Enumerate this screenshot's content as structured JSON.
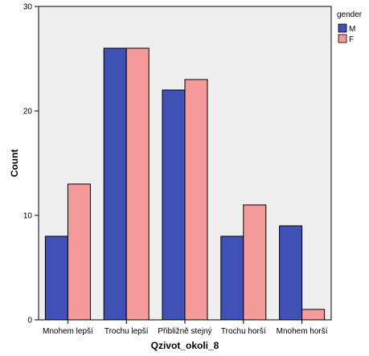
{
  "chart_data": {
    "type": "bar",
    "categories": [
      "Mnohem lepší",
      "Trochu lepší",
      "Přibližně stejný",
      "Trochu horší",
      "Mnohem horší"
    ],
    "series": [
      {
        "name": "M",
        "values": [
          8,
          26,
          22,
          8,
          9
        ],
        "color": "#3f51b5"
      },
      {
        "name": "F",
        "values": [
          13,
          26,
          23,
          11,
          1
        ],
        "color": "#f59a9a"
      }
    ],
    "xlabel": "Qzivot_okoli_8",
    "ylabel": "Count",
    "ylim": [
      0,
      30
    ],
    "yticks": [
      0,
      10,
      20,
      30
    ],
    "grid": false,
    "legend": {
      "title": "gender",
      "position": "top-right"
    },
    "colors": {
      "plot_background": "#efefef",
      "bar_border": "#000000"
    }
  }
}
